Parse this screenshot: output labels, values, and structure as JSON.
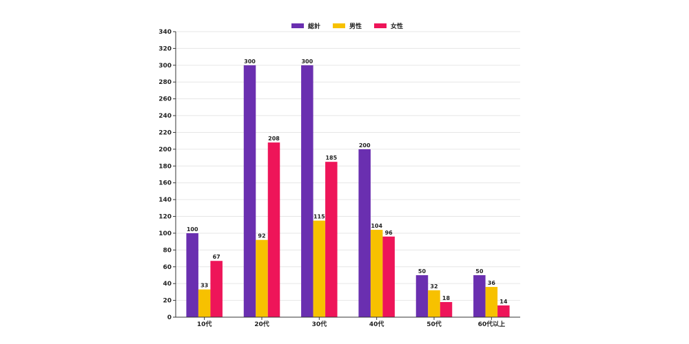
{
  "chart_data": {
    "type": "bar",
    "title": "",
    "xlabel": "",
    "ylabel": "",
    "categories": [
      "10代",
      "20代",
      "30代",
      "40代",
      "50代",
      "60代以上"
    ],
    "series": [
      {
        "name": "総計",
        "color": "#6a2fb0",
        "values": [
          100,
          300,
          300,
          200,
          50,
          50
        ]
      },
      {
        "name": "男性",
        "color": "#f7c100",
        "values": [
          33,
          92,
          115,
          104,
          32,
          36
        ]
      },
      {
        "name": "女性",
        "color": "#ee1559",
        "values": [
          67,
          208,
          185,
          96,
          18,
          14
        ]
      }
    ],
    "ylim": [
      0,
      340
    ],
    "yticks": [
      0,
      20,
      40,
      60,
      80,
      100,
      120,
      140,
      160,
      180,
      200,
      220,
      240,
      260,
      280,
      300,
      320,
      340
    ],
    "grid": true,
    "legend_position": "top-center",
    "data_labels": true
  }
}
